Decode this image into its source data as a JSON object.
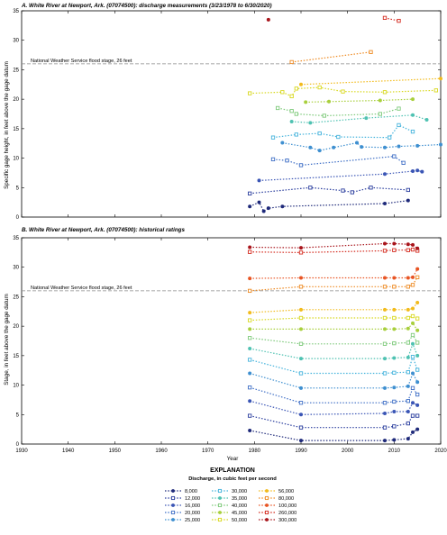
{
  "xaxis": {
    "label": "Year",
    "ticks": [
      1930,
      1940,
      1950,
      1960,
      1970,
      1980,
      1990,
      2000,
      2010,
      2020
    ],
    "range": [
      1930,
      2020
    ]
  },
  "panels": [
    {
      "id": "A",
      "title": "A. White River at Newport, Ark. (07074500): discharge measurements (3/23/1978 to 6/30/2020)",
      "ylabel": "Specific gage height, in feet above the gage datum",
      "yrange": [
        0,
        35
      ],
      "yticks": [
        0,
        5,
        10,
        15,
        20,
        25,
        30,
        35
      ],
      "flood_label": "National Weather Service flood stage, 26 feet",
      "flood_stage": 26
    },
    {
      "id": "B",
      "title": "B. White River at Newport, Ark. (07074500): historical ratings",
      "ylabel": "Stage, in feet above the gage datum",
      "yrange": [
        0,
        35
      ],
      "yticks": [
        0,
        5,
        10,
        15,
        20,
        25,
        30,
        35
      ],
      "flood_label": "National Weather Service flood stage, 26 feet",
      "flood_stage": 26
    }
  ],
  "legend": {
    "title": "EXPLANATION",
    "subtitle": "Discharge, in cubic feet per second",
    "items": [
      {
        "label": "8,000",
        "color": "#1f2a7a",
        "marker": "circle"
      },
      {
        "label": "12,000",
        "color": "#2b3e9e",
        "marker": "square"
      },
      {
        "label": "16,000",
        "color": "#3a55b5",
        "marker": "circle"
      },
      {
        "label": "20,000",
        "color": "#3f6fc6",
        "marker": "square"
      },
      {
        "label": "25,000",
        "color": "#3e8fd0",
        "marker": "circle"
      },
      {
        "label": "30,000",
        "color": "#45b3dc",
        "marker": "square"
      },
      {
        "label": "35,000",
        "color": "#4fc2b2",
        "marker": "circle"
      },
      {
        "label": "40,000",
        "color": "#7dc97a",
        "marker": "square"
      },
      {
        "label": "45,000",
        "color": "#a8cf3c",
        "marker": "circle"
      },
      {
        "label": "50,000",
        "color": "#d8d81e",
        "marker": "square"
      },
      {
        "label": "56,000",
        "color": "#f2bb1c",
        "marker": "circle"
      },
      {
        "label": "80,000",
        "color": "#ee8a22",
        "marker": "square"
      },
      {
        "label": "100,000",
        "color": "#e85423",
        "marker": "circle"
      },
      {
        "label": "260,000",
        "color": "#d42a1e",
        "marker": "square"
      },
      {
        "label": "300,000",
        "color": "#a8141b",
        "marker": "circle"
      }
    ]
  },
  "chart_data": [
    {
      "type": "scatter",
      "title": "A. White River at Newport, Ark. (07074500): discharge measurements (3/23/1978 to 6/30/2020)",
      "xlabel": "Year",
      "ylabel": "Specific gage height, in feet above the gage datum",
      "xlim": [
        1930,
        2020
      ],
      "ylim": [
        0,
        35
      ],
      "reference_line": {
        "y": 26,
        "label": "National Weather Service flood stage, 26 feet"
      },
      "series": [
        {
          "name": "8,000",
          "x": [
            1979,
            1981,
            1982,
            1983,
            1986,
            2008,
            2013
          ],
          "y": [
            1.8,
            2.5,
            1.0,
            1.5,
            1.8,
            2.3,
            2.8
          ]
        },
        {
          "name": "12,000",
          "x": [
            1979,
            1992,
            1999,
            2001,
            2005,
            2013
          ],
          "y": [
            4.0,
            5.0,
            4.5,
            4.2,
            5.0,
            4.6
          ]
        },
        {
          "name": "16,000",
          "x": [
            1981,
            2008,
            2014,
            2015,
            2016
          ],
          "y": [
            6.2,
            7.3,
            7.8,
            7.9,
            7.7
          ]
        },
        {
          "name": "20,000",
          "x": [
            1984,
            1987,
            1990,
            2010,
            2012
          ],
          "y": [
            9.8,
            9.6,
            8.8,
            10.3,
            9.2
          ]
        },
        {
          "name": "25,000",
          "x": [
            1986,
            1992,
            1994,
            1997,
            2002,
            2003,
            2008,
            2011,
            2015,
            2020
          ],
          "y": [
            12.6,
            11.8,
            11.3,
            11.8,
            12.6,
            11.9,
            11.8,
            12.0,
            12.1,
            12.3
          ]
        },
        {
          "name": "30,000",
          "x": [
            1984,
            1989,
            1994,
            1998,
            2009,
            2011,
            2014
          ],
          "y": [
            13.5,
            14.0,
            14.2,
            13.6,
            13.5,
            15.6,
            14.5
          ]
        },
        {
          "name": "35,000",
          "x": [
            1988,
            1992,
            2004,
            2014,
            2017
          ],
          "y": [
            16.2,
            16.0,
            16.8,
            17.3,
            16.5
          ]
        },
        {
          "name": "40,000",
          "x": [
            1985,
            1988,
            1989,
            1995,
            2007,
            2011
          ],
          "y": [
            18.5,
            18.0,
            17.5,
            17.2,
            17.5,
            18.4
          ]
        },
        {
          "name": "45,000",
          "x": [
            1991,
            1996,
            2007,
            2014
          ],
          "y": [
            19.5,
            19.6,
            19.8,
            20.0
          ]
        },
        {
          "name": "50,000",
          "x": [
            1979,
            1986,
            1988,
            1989,
            1994,
            1999,
            2008,
            2019
          ],
          "y": [
            21.0,
            21.2,
            20.5,
            21.8,
            22.0,
            21.3,
            21.2,
            21.5
          ]
        },
        {
          "name": "56,000",
          "x": [
            1990,
            2020
          ],
          "y": [
            22.5,
            23.5
          ]
        },
        {
          "name": "80,000",
          "x": [
            1988,
            2005
          ],
          "y": [
            26.3,
            28.0
          ]
        },
        {
          "name": "260,000",
          "x": [
            2008,
            2011
          ],
          "y": [
            33.8,
            33.3
          ]
        },
        {
          "name": "300,000",
          "x": [
            1983
          ],
          "y": [
            33.5
          ]
        }
      ]
    },
    {
      "type": "line",
      "title": "B. White River at Newport, Ark. (07074500): historical ratings",
      "xlabel": "Year",
      "ylabel": "Stage, in feet above the gage datum",
      "xlim": [
        1930,
        2020
      ],
      "ylim": [
        0,
        35
      ],
      "reference_line": {
        "y": 26,
        "label": "National Weather Service flood stage, 26 feet"
      },
      "x": [
        1979,
        1990,
        2008,
        2010,
        2013,
        2014,
        2015
      ],
      "series": [
        {
          "name": "8,000",
          "values": [
            2.3,
            0.6,
            0.6,
            0.7,
            0.9,
            2.0,
            2.5
          ]
        },
        {
          "name": "12,000",
          "values": [
            4.8,
            2.8,
            2.8,
            3.0,
            3.5,
            4.8,
            4.8
          ]
        },
        {
          "name": "16,000",
          "values": [
            7.3,
            5.0,
            5.2,
            5.5,
            5.5,
            7.0,
            6.6
          ]
        },
        {
          "name": "20,000",
          "values": [
            9.6,
            7.0,
            7.0,
            7.2,
            7.3,
            9.5,
            8.4
          ]
        },
        {
          "name": "25,000",
          "values": [
            12.0,
            9.5,
            9.5,
            9.6,
            9.8,
            12.0,
            10.5
          ]
        },
        {
          "name": "30,000",
          "values": [
            14.3,
            12.0,
            12.0,
            12.1,
            12.2,
            14.8,
            12.6
          ]
        },
        {
          "name": "35,000",
          "values": [
            16.2,
            14.5,
            14.5,
            14.6,
            14.7,
            17.0,
            15.0
          ]
        },
        {
          "name": "40,000",
          "values": [
            18.0,
            17.0,
            17.0,
            17.1,
            17.2,
            18.5,
            17.2
          ]
        },
        {
          "name": "45,000",
          "values": [
            19.5,
            19.5,
            19.5,
            19.5,
            19.6,
            20.5,
            19.3
          ]
        },
        {
          "name": "50,000",
          "values": [
            21.0,
            21.4,
            21.4,
            21.4,
            21.4,
            21.7,
            21.3
          ]
        },
        {
          "name": "56,000",
          "values": [
            22.3,
            22.8,
            22.8,
            22.8,
            22.8,
            23.0,
            24.0
          ]
        },
        {
          "name": "80,000",
          "values": [
            26.0,
            26.7,
            26.7,
            26.7,
            26.7,
            27.0,
            28.3
          ]
        },
        {
          "name": "100,000",
          "values": [
            28.1,
            28.2,
            28.2,
            28.2,
            28.2,
            28.3,
            29.7
          ]
        },
        {
          "name": "260,000",
          "values": [
            32.6,
            32.5,
            32.8,
            32.9,
            32.9,
            33.0,
            32.8
          ]
        },
        {
          "name": "300,000",
          "values": [
            33.4,
            33.3,
            34.0,
            34.0,
            33.9,
            33.8,
            33.2
          ]
        }
      ]
    }
  ]
}
